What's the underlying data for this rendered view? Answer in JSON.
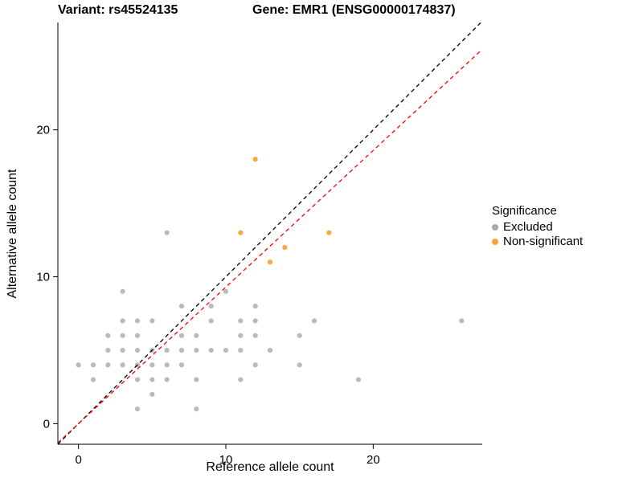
{
  "titles": {
    "variant": "Variant: rs45524135",
    "gene": "Gene: EMR1 (ENSG00000174837)"
  },
  "axes": {
    "x_label": "Reference allele count",
    "y_label": "Alternative allele count",
    "x_ticks": [
      0,
      10,
      20
    ],
    "y_ticks": [
      0,
      10,
      20
    ]
  },
  "legend": {
    "title": "Significance",
    "items": [
      {
        "label": "Excluded",
        "color": "#A8A8A8"
      },
      {
        "label": "Non-significant",
        "color": "#FBA338"
      }
    ]
  },
  "chart_data": {
    "type": "scatter",
    "title": "Variant: rs45524135 — Gene: EMR1 (ENSG00000174837)",
    "xlabel": "Reference allele count",
    "ylabel": "Alternative allele count",
    "xlim": [
      -1.4,
      27.4
    ],
    "ylim": [
      -1.4,
      27.2
    ],
    "grid": false,
    "legend_position": "right",
    "series": [
      {
        "name": "Excluded",
        "color": "#8C8C8C",
        "opacity": 0.6,
        "points": [
          [
            0,
            4
          ],
          [
            1,
            3
          ],
          [
            1,
            4
          ],
          [
            2,
            4
          ],
          [
            2,
            5
          ],
          [
            2,
            6
          ],
          [
            3,
            4
          ],
          [
            3,
            5
          ],
          [
            3,
            6
          ],
          [
            3,
            7
          ],
          [
            3,
            9
          ],
          [
            4,
            1
          ],
          [
            4,
            3
          ],
          [
            4,
            4
          ],
          [
            4,
            5
          ],
          [
            4,
            6
          ],
          [
            4,
            7
          ],
          [
            5,
            2
          ],
          [
            5,
            3
          ],
          [
            5,
            4
          ],
          [
            5,
            5
          ],
          [
            5,
            7
          ],
          [
            6,
            3
          ],
          [
            6,
            4
          ],
          [
            6,
            5
          ],
          [
            6,
            13
          ],
          [
            7,
            4
          ],
          [
            7,
            5
          ],
          [
            7,
            6
          ],
          [
            7,
            8
          ],
          [
            8,
            1
          ],
          [
            8,
            3
          ],
          [
            8,
            5
          ],
          [
            8,
            6
          ],
          [
            9,
            5
          ],
          [
            9,
            7
          ],
          [
            9,
            8
          ],
          [
            10,
            5
          ],
          [
            10,
            9
          ],
          [
            11,
            3
          ],
          [
            11,
            5
          ],
          [
            11,
            6
          ],
          [
            11,
            7
          ],
          [
            12,
            4
          ],
          [
            12,
            6
          ],
          [
            12,
            7
          ],
          [
            12,
            8
          ],
          [
            13,
            5
          ],
          [
            15,
            4
          ],
          [
            15,
            6
          ],
          [
            16,
            7
          ],
          [
            19,
            3
          ],
          [
            26,
            7
          ]
        ]
      },
      {
        "name": "Non-significant",
        "color": "#FBA338",
        "opacity": 0.95,
        "points": [
          [
            11,
            13
          ],
          [
            12,
            18
          ],
          [
            13,
            11
          ],
          [
            14,
            12
          ],
          [
            17,
            13
          ]
        ]
      }
    ],
    "reference_lines": [
      {
        "label": "identity-line",
        "slope": 1.0,
        "intercept": 0,
        "color": "#000000",
        "dash": true
      },
      {
        "label": "fit-line",
        "slope": 0.93,
        "intercept": 0,
        "color": "#FF0000",
        "dash": true
      }
    ]
  }
}
